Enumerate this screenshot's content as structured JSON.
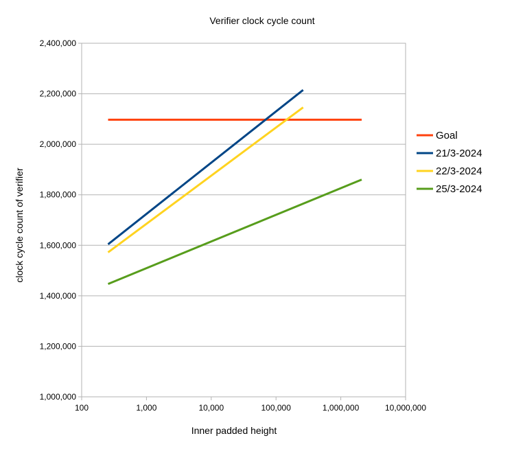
{
  "chart_data": {
    "type": "line",
    "title": "Verifier clock cycle count",
    "xlabel": "Inner padded height",
    "ylabel": "clock cycle count of verifier",
    "xscale": "log",
    "xlim": [
      100,
      10000000
    ],
    "ylim": [
      1000000,
      2400000
    ],
    "x_tick_labels": [
      "100",
      "1,000",
      "10,000",
      "100,000",
      "1,000,000",
      "10,000,000"
    ],
    "y_tick_labels": [
      "1,000,000",
      "1,200,000",
      "1,400,000",
      "1,600,000",
      "1,800,000",
      "2,000,000",
      "2,200,000",
      "2,400,000"
    ],
    "grid": "horizontal",
    "legend_position": "right",
    "series": [
      {
        "name": "Goal",
        "color": "#ff420e",
        "x": [
          256,
          2097152
        ],
        "y": [
          2097152,
          2097152
        ]
      },
      {
        "name": "21/3-2024",
        "color": "#004586",
        "x": [
          256,
          262144
        ],
        "y": [
          1604000,
          2215000
        ]
      },
      {
        "name": "22/3-2024",
        "color": "#ffd320",
        "x": [
          256,
          262144
        ],
        "y": [
          1572000,
          2146000
        ]
      },
      {
        "name": "25/3-2024",
        "color": "#579d1c",
        "x": [
          256,
          2097152
        ],
        "y": [
          1447000,
          1860000
        ]
      }
    ]
  }
}
